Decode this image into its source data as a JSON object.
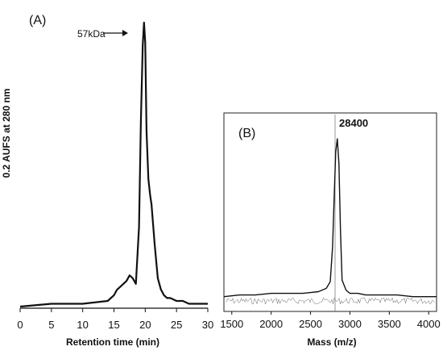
{
  "chart_data": [
    {
      "panel": "(A)",
      "type": "line",
      "xlabel": "Retention time (min)",
      "ylabel": "0.2 AUFS at 280 nm",
      "xlim": [
        0,
        30
      ],
      "xticks": [
        "0",
        "5",
        "10",
        "15",
        "20",
        "25",
        "30"
      ],
      "annotation": "57kDa",
      "annotation_x": 20,
      "series": [
        {
          "x": [
            0,
            5,
            10,
            14,
            15,
            15.5,
            16,
            16.5,
            17,
            17.5,
            18,
            18.5,
            19,
            19.3,
            19.6,
            19.8,
            20,
            20.2,
            20.5,
            20.8,
            21,
            21.5,
            22,
            22.5,
            23,
            23.5,
            24,
            25,
            26,
            27,
            28,
            29,
            30
          ],
          "y": [
            0.0,
            0.01,
            0.01,
            0.02,
            0.04,
            0.06,
            0.07,
            0.08,
            0.09,
            0.11,
            0.1,
            0.08,
            0.28,
            0.65,
            0.92,
            1.0,
            0.93,
            0.62,
            0.45,
            0.39,
            0.36,
            0.22,
            0.1,
            0.06,
            0.04,
            0.03,
            0.03,
            0.02,
            0.02,
            0.01,
            0.01,
            0.01,
            0.01
          ]
        }
      ]
    },
    {
      "panel": "(B)",
      "type": "line",
      "xlabel": "Mass (m/z)",
      "xlim": [
        1400,
        4100
      ],
      "xticks": [
        "1500",
        "2000",
        "2500",
        "3000",
        "3500",
        "4000"
      ],
      "annotation": "28400",
      "annotation_x": 2840,
      "series": [
        {
          "x": [
            1400,
            1600,
            1800,
            2000,
            2200,
            2400,
            2600,
            2700,
            2750,
            2780,
            2800,
            2820,
            2840,
            2860,
            2880,
            2900,
            2950,
            3000,
            3100,
            3200,
            3400,
            3600,
            3800,
            4000,
            4100
          ],
          "y": [
            0.05,
            0.06,
            0.06,
            0.07,
            0.07,
            0.07,
            0.08,
            0.1,
            0.14,
            0.35,
            0.65,
            0.92,
            1.0,
            0.85,
            0.45,
            0.15,
            0.09,
            0.07,
            0.07,
            0.06,
            0.06,
            0.06,
            0.05,
            0.05,
            0.05
          ]
        }
      ]
    }
  ]
}
